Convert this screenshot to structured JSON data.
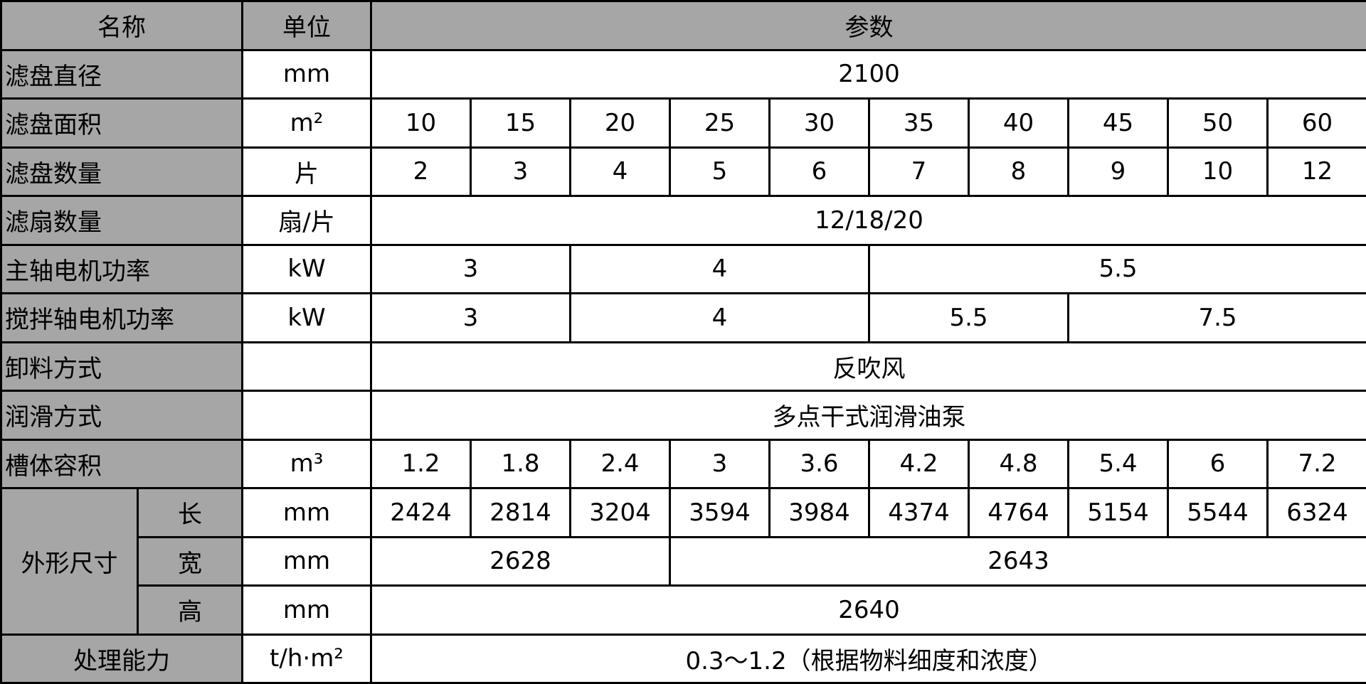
{
  "header": {
    "name": "名称",
    "unit": "单位",
    "params": "参数"
  },
  "rows": [
    {
      "name": "滤盘直径",
      "unit": "mm",
      "cells": [
        {
          "text": "2100",
          "span": 10
        }
      ]
    },
    {
      "name": "滤盘面积",
      "unit": "m²",
      "cells": [
        {
          "text": "10"
        },
        {
          "text": "15"
        },
        {
          "text": "20"
        },
        {
          "text": "25"
        },
        {
          "text": "30"
        },
        {
          "text": "35"
        },
        {
          "text": "40"
        },
        {
          "text": "45"
        },
        {
          "text": "50"
        },
        {
          "text": "60"
        }
      ]
    },
    {
      "name": "滤盘数量",
      "unit": "片",
      "cells": [
        {
          "text": "2"
        },
        {
          "text": "3"
        },
        {
          "text": "4"
        },
        {
          "text": "5"
        },
        {
          "text": "6"
        },
        {
          "text": "7"
        },
        {
          "text": "8"
        },
        {
          "text": "9"
        },
        {
          "text": "10"
        },
        {
          "text": "12"
        }
      ]
    },
    {
      "name": "滤扇数量",
      "unit": "扇/片",
      "cells": [
        {
          "text": "12/18/20",
          "span": 10
        }
      ]
    },
    {
      "name": "主轴电机功率",
      "unit": "kW",
      "cells": [
        {
          "text": "3",
          "span": 2
        },
        {
          "text": "4",
          "span": 3
        },
        {
          "text": "5.5",
          "span": 5
        }
      ]
    },
    {
      "name": "搅拌轴电机功率",
      "unit": "kW",
      "cells": [
        {
          "text": "3",
          "span": 2
        },
        {
          "text": "4",
          "span": 3
        },
        {
          "text": "5.5",
          "span": 2
        },
        {
          "text": "7.5",
          "span": 3
        }
      ]
    },
    {
      "name": "卸料方式",
      "unit": "",
      "cells": [
        {
          "text": "反吹风",
          "span": 10
        }
      ]
    },
    {
      "name": "润滑方式",
      "unit": "",
      "cells": [
        {
          "text": "多点干式润滑油泵",
          "span": 10
        }
      ]
    },
    {
      "name": "槽体容积",
      "unit": "m³",
      "cells": [
        {
          "text": "1.2"
        },
        {
          "text": "1.8"
        },
        {
          "text": "2.4"
        },
        {
          "text": "3"
        },
        {
          "text": "3.6"
        },
        {
          "text": "4.2"
        },
        {
          "text": "4.8"
        },
        {
          "text": "5.4"
        },
        {
          "text": "6"
        },
        {
          "text": "7.2"
        }
      ]
    }
  ],
  "dimensions": {
    "group_label": "外形尺寸",
    "rows": [
      {
        "name": "长",
        "unit": "mm",
        "cells": [
          {
            "text": "2424"
          },
          {
            "text": "2814"
          },
          {
            "text": "3204"
          },
          {
            "text": "3594"
          },
          {
            "text": "3984"
          },
          {
            "text": "4374"
          },
          {
            "text": "4764"
          },
          {
            "text": "5154"
          },
          {
            "text": "5544"
          },
          {
            "text": "6324"
          }
        ]
      },
      {
        "name": "宽",
        "unit": "mm",
        "cells": [
          {
            "text": "2628",
            "span": 3
          },
          {
            "text": "2643",
            "span": 7
          }
        ]
      },
      {
        "name": "高",
        "unit": "mm",
        "cells": [
          {
            "text": "2640",
            "span": 10
          }
        ]
      }
    ]
  },
  "capacity": {
    "name": "处理能力",
    "unit": "t/h·m²",
    "value": "0.3～1.2（根据物料细度和浓度）"
  },
  "colors": {
    "header_gray": "#a6a6a6",
    "border": "#000000"
  }
}
